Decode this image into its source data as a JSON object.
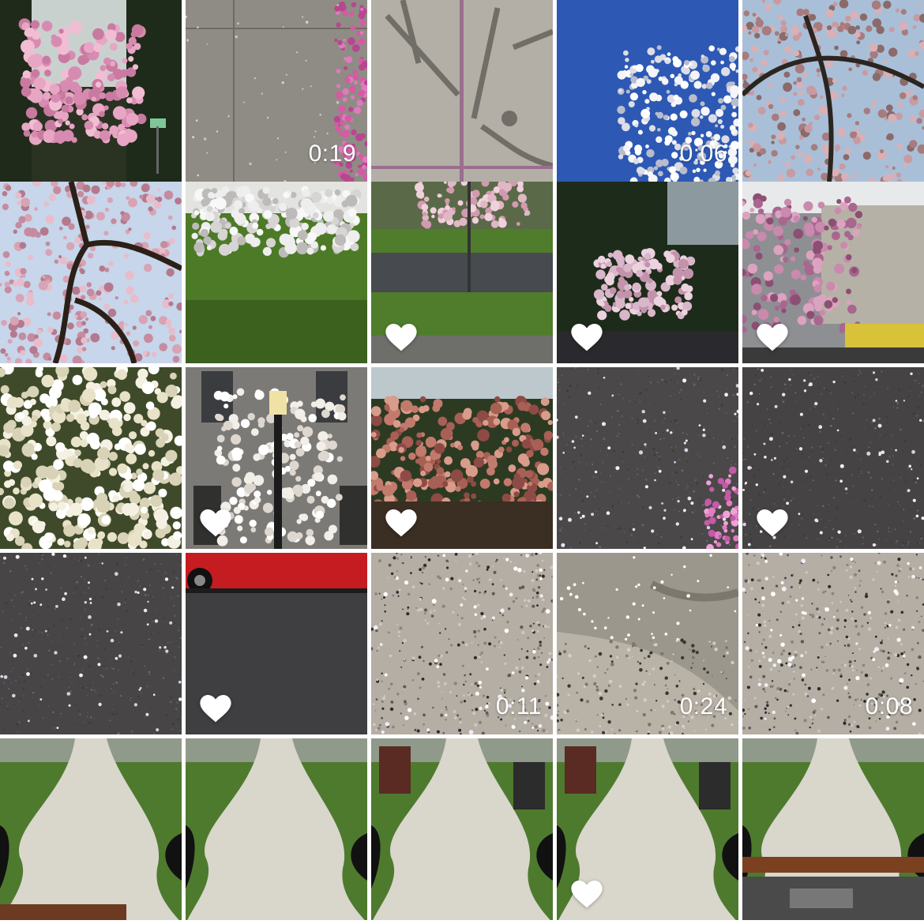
{
  "app": {
    "view": "photo-grid"
  },
  "grid": {
    "columns": 5,
    "rows": 5,
    "items": [
      {
        "scene": "pink-tree-forest",
        "duration": "",
        "favorite": false
      },
      {
        "scene": "sidewalk-petals-edge",
        "duration": "0:19",
        "favorite": false
      },
      {
        "scene": "shadow-sidewalk",
        "duration": "",
        "favorite": false
      },
      {
        "scene": "white-blossom-blue-sky",
        "duration": "0:06",
        "favorite": false
      },
      {
        "scene": "weeping-cherry-sky",
        "duration": "",
        "favorite": false
      },
      {
        "scene": "weeping-cherry-under",
        "duration": "",
        "favorite": false
      },
      {
        "scene": "white-tree-lawn",
        "duration": "",
        "favorite": false
      },
      {
        "scene": "lawn-road-pink-tree",
        "duration": "",
        "favorite": true
      },
      {
        "scene": "pink-tree-dusk",
        "duration": "",
        "favorite": true
      },
      {
        "scene": "pink-tree-building",
        "duration": "",
        "favorite": true
      },
      {
        "scene": "white-blossom-closeup",
        "duration": "",
        "favorite": false
      },
      {
        "scene": "magnolia-lamp-post",
        "duration": "",
        "favorite": true
      },
      {
        "scene": "copper-tree",
        "duration": "",
        "favorite": true
      },
      {
        "scene": "asphalt-petals",
        "duration": "",
        "favorite": false
      },
      {
        "scene": "asphalt-petals-2",
        "duration": "",
        "favorite": true
      },
      {
        "scene": "asphalt-petals-3",
        "duration": "",
        "favorite": false
      },
      {
        "scene": "red-truck-road",
        "duration": "",
        "favorite": true
      },
      {
        "scene": "gravel-petals",
        "duration": "0:11",
        "favorite": false
      },
      {
        "scene": "curb-petals",
        "duration": "0:24",
        "favorite": false
      },
      {
        "scene": "gravel-petals-2",
        "duration": "0:08",
        "favorite": false
      },
      {
        "scene": "sidewalk-path-1",
        "duration": "",
        "favorite": false
      },
      {
        "scene": "sidewalk-path-2",
        "duration": "",
        "favorite": false
      },
      {
        "scene": "sidewalk-path-3",
        "duration": "",
        "favorite": false
      },
      {
        "scene": "sidewalk-path-4",
        "duration": "",
        "favorite": true
      },
      {
        "scene": "sidewalk-path-5",
        "duration": "",
        "favorite": false
      }
    ]
  },
  "colors": {
    "background": "#ffffff",
    "overlay_text": "#ffffff",
    "heart": "#ffffff"
  },
  "icons": {
    "favorite": "heart-icon"
  }
}
